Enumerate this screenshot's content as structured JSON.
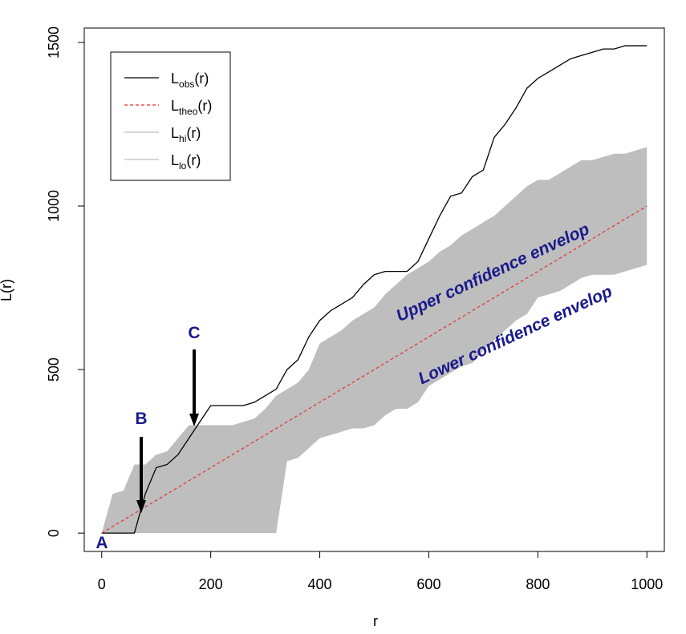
{
  "chart_data": {
    "type": "line",
    "x_label": "r",
    "y_label": "L(r)",
    "xlim": [
      -32,
      1032
    ],
    "ylim": [
      -56,
      1544
    ],
    "xticks": [
      0,
      200,
      400,
      600,
      800,
      1000
    ],
    "yticks": [
      0,
      500,
      1000,
      1500
    ],
    "legend_position": "top-left",
    "series": [
      {
        "name": "L",
        "subscript": "obs",
        "suffix": "(r)",
        "color": "#000000",
        "style": "solid",
        "x": [
          0,
          20,
          40,
          60,
          80,
          100,
          120,
          140,
          160,
          180,
          200,
          220,
          240,
          260,
          280,
          300,
          320,
          340,
          360,
          380,
          400,
          420,
          440,
          460,
          480,
          500,
          520,
          540,
          560,
          580,
          600,
          620,
          640,
          660,
          680,
          700,
          720,
          740,
          760,
          780,
          800,
          820,
          840,
          860,
          880,
          900,
          920,
          940,
          960,
          980,
          1000
        ],
        "values": [
          0,
          0,
          0,
          0,
          120,
          200,
          210,
          240,
          290,
          340,
          390,
          390,
          390,
          390,
          400,
          420,
          440,
          500,
          530,
          600,
          650,
          680,
          700,
          720,
          760,
          790,
          800,
          800,
          800,
          830,
          900,
          970,
          1030,
          1040,
          1090,
          1110,
          1210,
          1250,
          1300,
          1360,
          1390,
          1410,
          1430,
          1450,
          1460,
          1470,
          1480,
          1480,
          1490,
          1490,
          1490
        ]
      },
      {
        "name": "L",
        "subscript": "theo",
        "suffix": "(r)",
        "color": "#e8302a",
        "style": "dashed",
        "x": [
          0,
          1000
        ],
        "values": [
          0,
          1000
        ]
      },
      {
        "name": "L",
        "subscript": "hi",
        "suffix": "(r)",
        "color": "#bebebe",
        "style": "envelope",
        "x": [
          0,
          20,
          40,
          60,
          80,
          100,
          120,
          140,
          160,
          180,
          200,
          220,
          240,
          260,
          280,
          300,
          320,
          340,
          360,
          380,
          400,
          420,
          440,
          460,
          480,
          500,
          520,
          540,
          560,
          580,
          600,
          620,
          640,
          660,
          680,
          700,
          720,
          740,
          760,
          780,
          800,
          820,
          840,
          860,
          880,
          900,
          920,
          940,
          960,
          980,
          1000
        ],
        "values": [
          0,
          120,
          130,
          210,
          210,
          240,
          250,
          290,
          330,
          330,
          330,
          330,
          330,
          340,
          350,
          380,
          420,
          440,
          460,
          500,
          580,
          600,
          620,
          650,
          670,
          690,
          730,
          760,
          790,
          810,
          830,
          860,
          880,
          910,
          930,
          950,
          970,
          1000,
          1030,
          1060,
          1080,
          1080,
          1100,
          1120,
          1140,
          1140,
          1150,
          1160,
          1160,
          1170,
          1180
        ]
      },
      {
        "name": "L",
        "subscript": "lo",
        "suffix": "(r)",
        "color": "#bebebe",
        "style": "envelope",
        "x": [
          0,
          20,
          40,
          60,
          80,
          100,
          120,
          140,
          160,
          180,
          200,
          220,
          240,
          260,
          280,
          300,
          320,
          340,
          360,
          380,
          400,
          420,
          440,
          460,
          480,
          500,
          520,
          540,
          560,
          580,
          600,
          620,
          640,
          660,
          680,
          700,
          720,
          740,
          760,
          780,
          800,
          820,
          840,
          860,
          880,
          900,
          920,
          940,
          960,
          980,
          1000
        ],
        "values": [
          0,
          0,
          0,
          0,
          0,
          0,
          0,
          0,
          0,
          0,
          0,
          0,
          0,
          0,
          0,
          0,
          0,
          220,
          230,
          260,
          290,
          300,
          310,
          320,
          320,
          330,
          360,
          380,
          380,
          400,
          450,
          470,
          490,
          510,
          520,
          560,
          590,
          620,
          650,
          670,
          720,
          730,
          740,
          760,
          780,
          790,
          790,
          790,
          800,
          810,
          820
        ]
      }
    ],
    "annotations": [
      "A",
      "B",
      "C",
      "Upper confidence envelop",
      "Lower confidence envelop"
    ]
  }
}
